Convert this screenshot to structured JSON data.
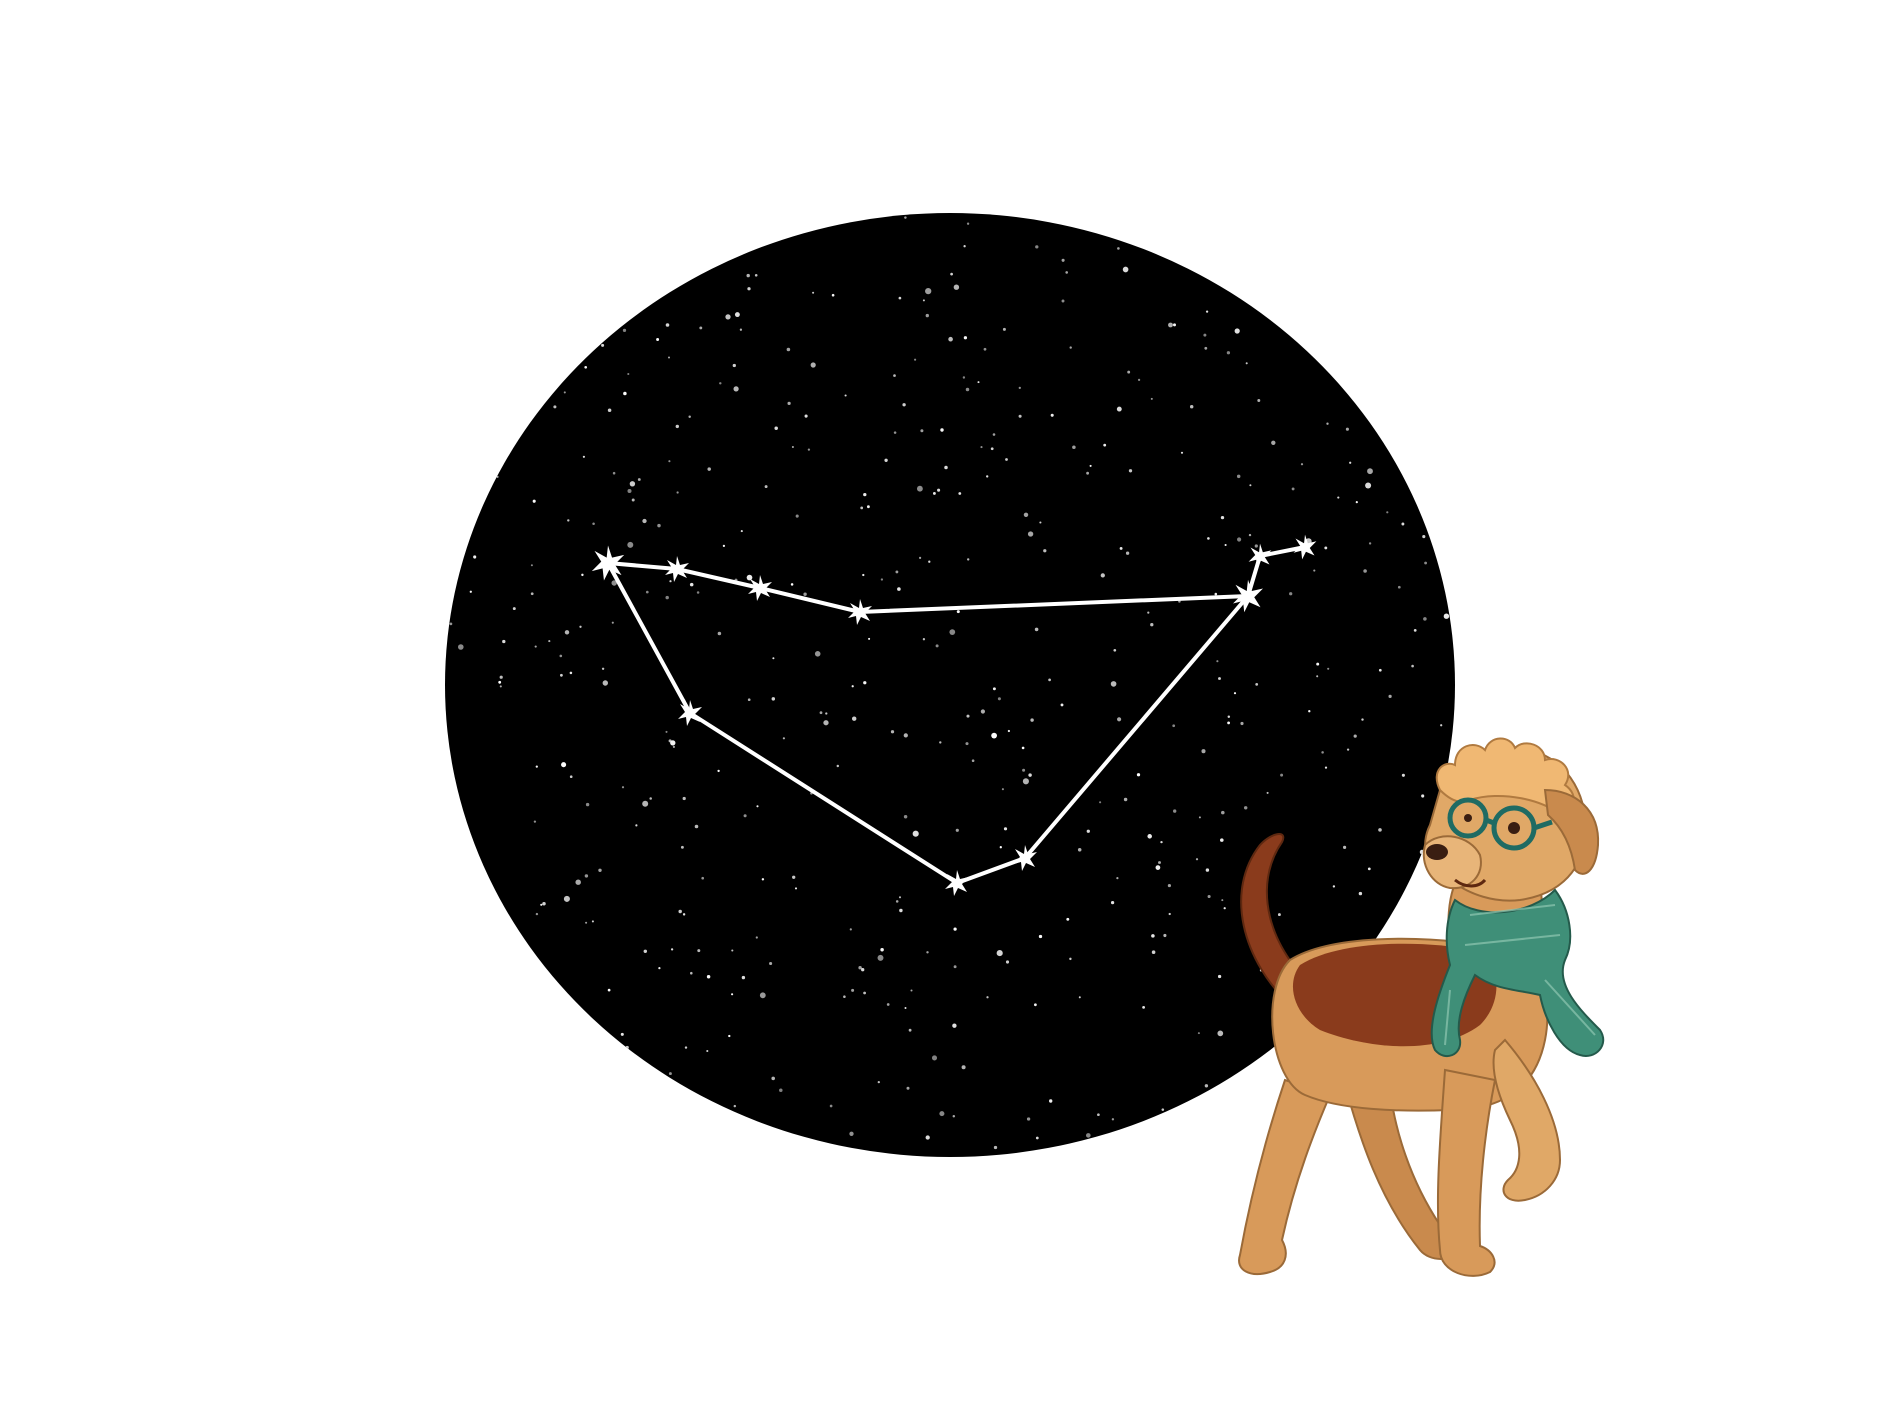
{
  "scene": {
    "background": "#ffffff",
    "sky_color": "#000000",
    "star_color": "#ffffff",
    "constellation_line_color": "#ffffff"
  },
  "constellation": {
    "star_count": 10,
    "icon": "constellation-icon"
  },
  "character": {
    "icon": "dog-with-glasses-and-scarf-icon",
    "fur_color": "#d89a5a",
    "saddle_color": "#8a3b1c",
    "scarf_color": "#3f8f78",
    "glasses_color": "#1f6b63"
  }
}
